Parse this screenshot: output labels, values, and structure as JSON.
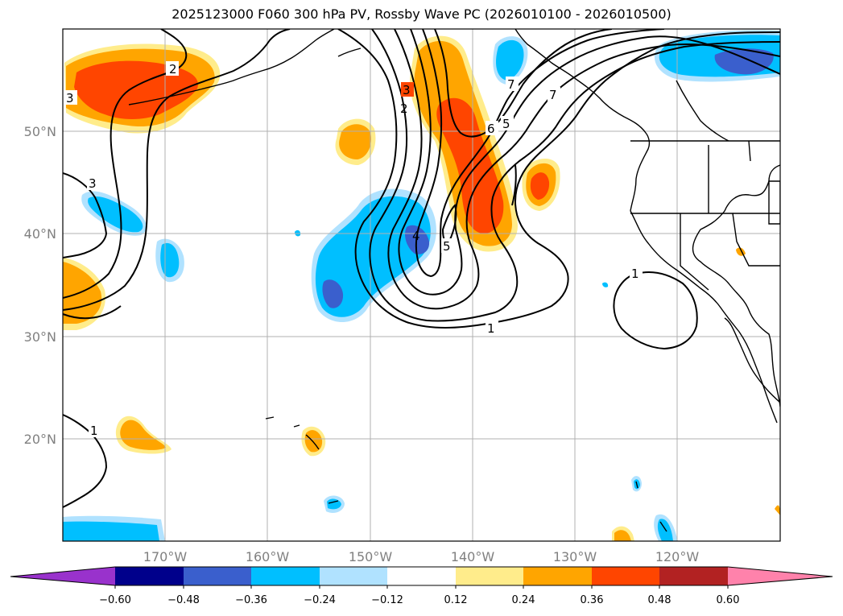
{
  "title": "2025123000 F060 300 hPa PV, Rossby Wave PC (2026010100 - 2026010500)",
  "colors": {
    "neg_below": "#9932cc",
    "neg_060": "#00008b",
    "neg_048": "#3a5fcd",
    "neg_036": "#00bfff",
    "neg_024": "#b0e2ff",
    "neutral": "#ffffff",
    "pos_012": "#ffec8b",
    "pos_024": "#ffa500",
    "pos_036": "#ff4500",
    "pos_048": "#b22222",
    "pos_above": "#ff82ab"
  },
  "lat_labels": [
    "50°N",
    "40°N",
    "30°N",
    "20°N"
  ],
  "lon_labels": [
    "170°W",
    "160°W",
    "150°W",
    "140°W",
    "130°W",
    "120°W"
  ],
  "colorbar_labels": [
    "−0.60",
    "−0.48",
    "−0.36",
    "−0.24",
    "−0.12",
    "0.12",
    "0.24",
    "0.36",
    "0.48",
    "0.60"
  ],
  "contour_labels": [
    "3",
    "2",
    "3",
    "1",
    "3",
    "2",
    "7",
    "6",
    "5",
    "4",
    "5",
    "1",
    "1",
    "7"
  ]
}
